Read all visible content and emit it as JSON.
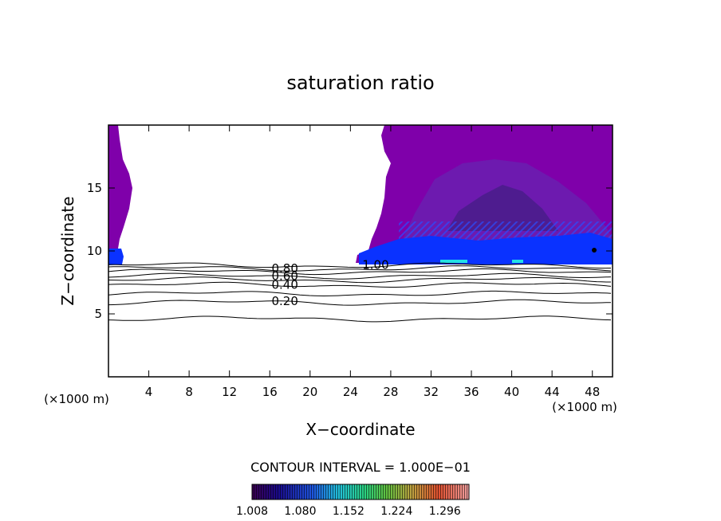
{
  "chart_data": {
    "type": "heatmap",
    "title": "saturation ratio",
    "xlabel": "X−coordinate",
    "ylabel": "Z−coordinate",
    "x_unit_left": "(×1000 m)",
    "x_unit_right": "(×1000 m)",
    "xlim": [
      0,
      50
    ],
    "ylim": [
      0,
      20
    ],
    "x_ticks": [
      4,
      8,
      12,
      16,
      20,
      24,
      28,
      32,
      36,
      40,
      44,
      48
    ],
    "y_ticks": [
      5,
      10,
      15
    ],
    "contour_interval_label": "CONTOUR INTERVAL = 1.000E−01",
    "contour_labels": [
      {
        "text": "0.80",
        "x": 17.5,
        "z": 8.6
      },
      {
        "text": "0.60",
        "x": 17.5,
        "z": 8.0
      },
      {
        "text": "0.40",
        "x": 17.5,
        "z": 7.3
      },
      {
        "text": "0.20",
        "x": 17.5,
        "z": 6.0
      },
      {
        "text": "1.00",
        "x": 26.5,
        "z": 8.9
      }
    ],
    "contour_levels": [
      {
        "level": 0.1,
        "z": 4.6
      },
      {
        "level": 0.2,
        "z": 5.9
      },
      {
        "level": 0.3,
        "z": 6.6
      },
      {
        "level": 0.4,
        "z": 7.3
      },
      {
        "level": 0.5,
        "z": 7.7
      },
      {
        "level": 0.6,
        "z": 8.0
      },
      {
        "level": 0.7,
        "z": 8.35
      },
      {
        "level": 0.8,
        "z": 8.6
      },
      {
        "level": 0.9,
        "z": 8.85
      }
    ],
    "colorbar": {
      "ticks": [
        "1.008",
        "1.080",
        "1.152",
        "1.224",
        "1.296"
      ],
      "range": [
        1.008,
        1.332
      ]
    },
    "fill_color": "#7f00aa",
    "accent_colors": {
      "low_band": "#0a32ff",
      "mid_band": "#6a1fb0",
      "core": "#4a1d8c",
      "cyan": "#22e0e6"
    }
  }
}
